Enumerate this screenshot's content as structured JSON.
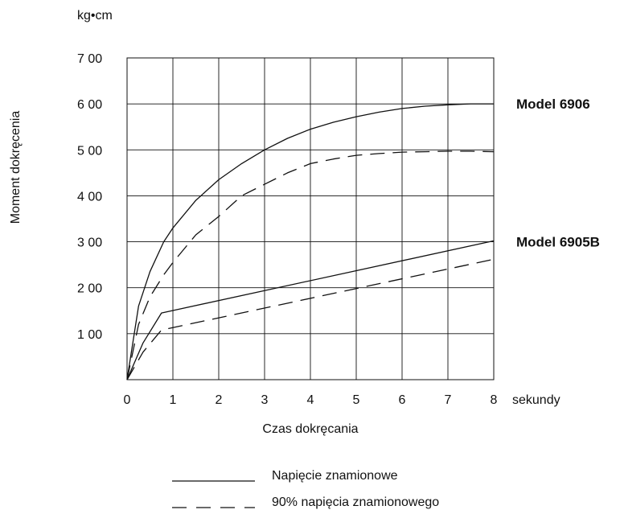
{
  "chart_data": {
    "type": "line",
    "title": "",
    "xlabel": "Czas dokręcania",
    "x_unit": "sekundy",
    "ylabel": "Moment dokręcenia",
    "y_unit": "kg•cm",
    "xlim": [
      0,
      8
    ],
    "ylim": [
      0,
      700
    ],
    "x_ticks": [
      0,
      1,
      2,
      3,
      4,
      5,
      6,
      7,
      8
    ],
    "x_tick_labels": [
      "0",
      "1",
      "2",
      "3",
      "4",
      "5",
      "6",
      "7",
      "8"
    ],
    "y_ticks": [
      100,
      200,
      300,
      400,
      500,
      600,
      700
    ],
    "y_tick_labels": [
      "1 00",
      "2 00",
      "3 00",
      "4 00",
      "5 00",
      "6 00",
      "7 00"
    ],
    "grid": true,
    "series": [
      {
        "model": "Model 6906",
        "style": "solid",
        "x": [
          0,
          0.25,
          0.5,
          0.8,
          1,
          1.5,
          2,
          2.5,
          3,
          3.5,
          4,
          4.5,
          5,
          5.5,
          6,
          6.5,
          7,
          7.5,
          8
        ],
        "y": [
          0,
          160,
          235,
          300,
          330,
          390,
          435,
          470,
          500,
          525,
          545,
          560,
          572,
          582,
          590,
          595,
          598,
          600,
          600
        ]
      },
      {
        "model": "Model 6906",
        "style": "dashed",
        "x": [
          0,
          0.25,
          0.5,
          0.8,
          1,
          1.5,
          2,
          2.5,
          3,
          3.5,
          4,
          4.5,
          5,
          5.5,
          6,
          6.5,
          7,
          7.5,
          8
        ],
        "y": [
          0,
          120,
          180,
          228,
          255,
          315,
          355,
          400,
          425,
          450,
          470,
          480,
          488,
          492,
          495,
          496,
          497,
          497,
          496
        ]
      },
      {
        "model": "Model 6905B",
        "style": "solid",
        "x": [
          0,
          0.35,
          0.75,
          8
        ],
        "y": [
          0,
          80,
          145,
          302
        ]
      },
      {
        "model": "Model 6905B",
        "style": "dashed",
        "x": [
          0,
          0.35,
          0.75,
          8
        ],
        "y": [
          0,
          60,
          108,
          262
        ]
      }
    ],
    "annotations": [
      {
        "text": "Model 6906",
        "at_y": 600
      },
      {
        "text": "Model 6905B",
        "at_y": 300
      }
    ],
    "legend": {
      "placement": "bottom-center",
      "items": [
        {
          "style": "solid",
          "label": "Napięcie znamionowe"
        },
        {
          "style": "dashed",
          "label": "90% napięcia znamionowego"
        }
      ]
    },
    "line_color": "#111111"
  }
}
